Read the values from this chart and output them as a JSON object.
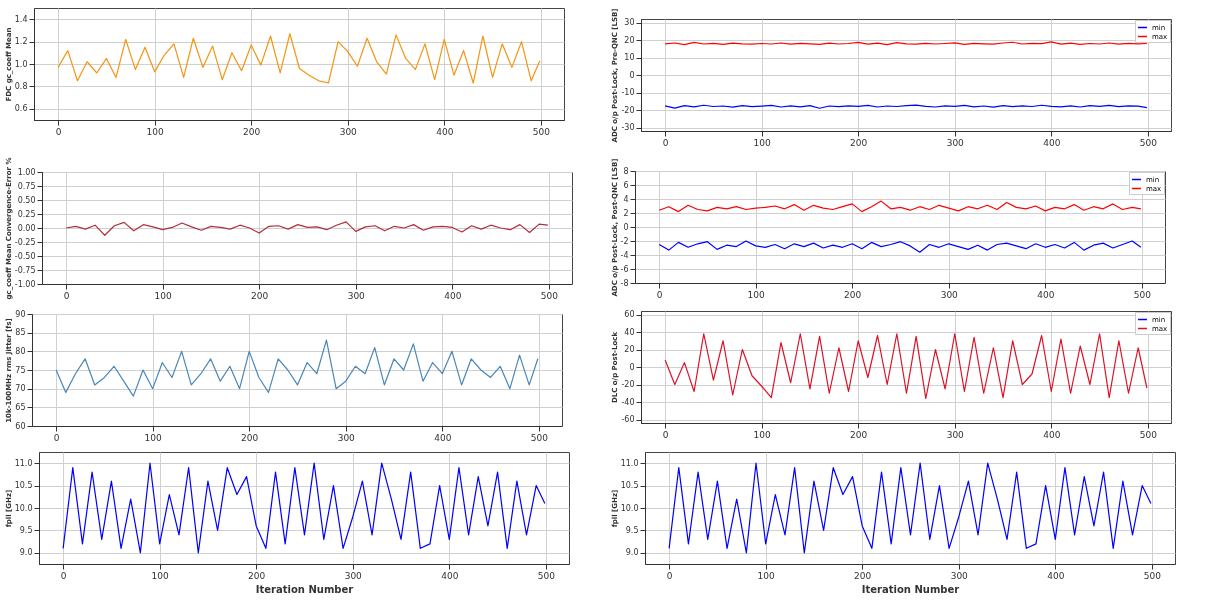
{
  "chart_data": [
    {
      "type": "line",
      "ylabel": "FDC gc_coeff Mean",
      "grid": true,
      "x": [
        0,
        10,
        20,
        30,
        40,
        50,
        60,
        70,
        80,
        90,
        100,
        110,
        120,
        130,
        140,
        150,
        160,
        170,
        180,
        190,
        200,
        210,
        220,
        230,
        240,
        250,
        260,
        270,
        280,
        290,
        300,
        310,
        320,
        330,
        340,
        350,
        360,
        370,
        380,
        390,
        400,
        410,
        420,
        430,
        440,
        450,
        460,
        470,
        480,
        490,
        499
      ],
      "xlim": [
        -25,
        524
      ],
      "xticks": [
        0,
        100,
        200,
        300,
        400,
        500
      ],
      "ylim": [
        0.5,
        1.5
      ],
      "yticks": [
        0.6,
        0.8,
        {
          "value": 1,
          "label": "1.0"
        },
        1.2,
        1.4
      ],
      "series": [
        {
          "color": "#f5940f",
          "values": [
            0.97,
            1.12,
            0.85,
            1.02,
            0.92,
            1.05,
            0.88,
            1.22,
            0.95,
            1.15,
            0.93,
            1.08,
            1.18,
            0.88,
            1.23,
            0.97,
            1.16,
            0.86,
            1.1,
            0.94,
            1.17,
            0.99,
            1.25,
            0.92,
            1.27,
            0.96,
            0.9,
            0.85,
            0.83,
            1.2,
            1.11,
            0.98,
            1.23,
            1.02,
            0.91,
            1.26,
            1.05,
            0.95,
            1.18,
            0.86,
            1.22,
            0.9,
            1.12,
            0.83,
            1.25,
            0.88,
            1.18,
            0.97,
            1.2,
            0.85,
            1.03
          ]
        }
      ]
    },
    {
      "type": "line",
      "ylabel": "ADC o/p Post-Lock, Pre-QNC [LSB]",
      "grid": true,
      "legend": "top right",
      "x": [
        0,
        10,
        20,
        30,
        40,
        50,
        60,
        70,
        80,
        90,
        100,
        110,
        120,
        130,
        140,
        150,
        160,
        170,
        180,
        190,
        200,
        210,
        220,
        230,
        240,
        250,
        260,
        270,
        280,
        290,
        300,
        310,
        320,
        330,
        340,
        350,
        360,
        370,
        380,
        390,
        400,
        410,
        420,
        430,
        440,
        450,
        460,
        470,
        480,
        490,
        499
      ],
      "xlim": [
        -25,
        524
      ],
      "xticks": [
        0,
        100,
        200,
        300,
        400,
        500
      ],
      "ylim": [
        -32,
        32
      ],
      "yticks": [
        -30,
        -20,
        -10,
        0,
        10,
        20,
        30
      ],
      "series": [
        {
          "name": "min",
          "color": "#0000ff",
          "values": [
            -17.6,
            -18.9,
            -17.5,
            -18.2,
            -17.3,
            -18.0,
            -17.7,
            -18.4,
            -17.5,
            -18.1,
            -17.8,
            -17.4,
            -18.3,
            -17.6,
            -18.2,
            -17.5,
            -19.0,
            -17.7,
            -18.1,
            -17.6,
            -17.9,
            -17.4,
            -18.3,
            -17.7,
            -18.0,
            -17.5,
            -17.2,
            -17.9,
            -18.3,
            -17.6,
            -17.9,
            -17.4,
            -18.2,
            -17.7,
            -18.4,
            -17.5,
            -18.1,
            -17.6,
            -18.0,
            -17.3,
            -17.9,
            -18.2,
            -17.6,
            -18.3,
            -17.5,
            -17.9,
            -17.4,
            -18.1,
            -17.6,
            -17.8,
            -18.6
          ]
        },
        {
          "name": "max",
          "color": "#ff0000",
          "values": [
            17.8,
            18.3,
            17.4,
            18.6,
            17.7,
            18.1,
            17.5,
            18.2,
            17.8,
            17.6,
            18.0,
            17.7,
            18.3,
            17.6,
            18.1,
            17.8,
            17.5,
            18.2,
            17.7,
            18.0,
            18.6,
            17.6,
            18.2,
            17.4,
            18.5,
            17.8,
            17.6,
            18.1,
            17.7,
            18.0,
            18.4,
            17.5,
            18.1,
            17.8,
            17.6,
            18.3,
            18.7,
            17.7,
            18.1,
            17.9,
            18.9,
            17.6,
            18.2,
            17.5,
            18.0,
            17.7,
            18.3,
            17.6,
            18.1,
            17.8,
            18.0
          ]
        }
      ]
    },
    {
      "type": "line",
      "ylabel": "gc_coeff Mean Convergence-Error %",
      "grid": true,
      "x": [
        0,
        10,
        20,
        30,
        40,
        50,
        60,
        70,
        80,
        90,
        100,
        110,
        120,
        130,
        140,
        150,
        160,
        170,
        180,
        190,
        200,
        210,
        220,
        230,
        240,
        250,
        260,
        270,
        280,
        290,
        300,
        310,
        320,
        330,
        340,
        350,
        360,
        370,
        380,
        390,
        400,
        410,
        420,
        430,
        440,
        450,
        460,
        470,
        480,
        490,
        499
      ],
      "xlim": [
        -25,
        524
      ],
      "xticks": [
        0,
        100,
        200,
        300,
        400,
        500
      ],
      "ylim": [
        -1,
        1
      ],
      "yticks": [
        {
          "value": -1,
          "label": "-1.00"
        },
        {
          "value": -0.75,
          "label": "-0.75"
        },
        {
          "value": -0.5,
          "label": "-0.50"
        },
        {
          "value": -0.25,
          "label": "-0.25"
        },
        {
          "value": 0,
          "label": "0.00"
        },
        {
          "value": 0.25,
          "label": "0.25"
        },
        {
          "value": 0.5,
          "label": "0.50"
        },
        {
          "value": 0.75,
          "label": "0.75"
        },
        {
          "value": 1,
          "label": "1.00"
        }
      ],
      "series": [
        {
          "color": "#b0303a",
          "values": [
            0.0,
            0.03,
            -0.02,
            0.05,
            -0.13,
            0.04,
            0.1,
            -0.05,
            0.06,
            0.02,
            -0.03,
            0.01,
            0.09,
            0.02,
            -0.04,
            0.03,
            0.01,
            -0.02,
            0.05,
            0.0,
            -0.09,
            0.03,
            0.04,
            -0.02,
            0.06,
            0.01,
            0.02,
            -0.03,
            0.05,
            0.11,
            -0.06,
            0.02,
            0.04,
            -0.05,
            0.03,
            0.0,
            0.06,
            -0.04,
            0.02,
            0.03,
            0.01,
            -0.07,
            0.04,
            -0.02,
            0.05,
            0.0,
            -0.03,
            0.06,
            -0.08,
            0.07,
            0.05
          ]
        }
      ]
    },
    {
      "type": "line",
      "ylabel": "ADC o/p Post-Lock, Post-QNC [LSB]",
      "grid": true,
      "legend": "top right",
      "x": [
        0,
        10,
        20,
        30,
        40,
        50,
        60,
        70,
        80,
        90,
        100,
        110,
        120,
        130,
        140,
        150,
        160,
        170,
        180,
        190,
        200,
        210,
        220,
        230,
        240,
        250,
        260,
        270,
        280,
        290,
        300,
        310,
        320,
        330,
        340,
        350,
        360,
        370,
        380,
        390,
        400,
        410,
        420,
        430,
        440,
        450,
        460,
        470,
        480,
        490,
        499
      ],
      "xlim": [
        -25,
        524
      ],
      "xticks": [
        0,
        100,
        200,
        300,
        400,
        500
      ],
      "ylim": [
        -8,
        8
      ],
      "yticks": [
        -8,
        -6,
        -4,
        -2,
        0,
        2,
        4,
        6,
        8
      ],
      "series": [
        {
          "name": "min",
          "color": "#0000ff",
          "values": [
            -2.5,
            -3.3,
            -2.2,
            -2.9,
            -2.4,
            -2.1,
            -3.2,
            -2.6,
            -2.8,
            -2.0,
            -2.7,
            -2.9,
            -2.5,
            -3.1,
            -2.4,
            -2.8,
            -2.3,
            -3.0,
            -2.6,
            -2.9,
            -2.4,
            -3.1,
            -2.2,
            -2.8,
            -2.5,
            -2.1,
            -2.7,
            -3.6,
            -2.5,
            -2.9,
            -2.4,
            -2.8,
            -3.2,
            -2.6,
            -3.3,
            -2.5,
            -2.3,
            -2.7,
            -3.1,
            -2.4,
            -2.9,
            -2.5,
            -3.0,
            -2.2,
            -3.3,
            -2.6,
            -2.3,
            -3.0,
            -2.5,
            -2.0,
            -2.9
          ]
        },
        {
          "name": "max",
          "color": "#ff0000",
          "values": [
            2.4,
            2.9,
            2.2,
            3.1,
            2.5,
            2.3,
            2.8,
            2.6,
            2.9,
            2.5,
            2.7,
            2.8,
            3.0,
            2.6,
            3.2,
            2.4,
            3.1,
            2.7,
            2.5,
            2.9,
            3.3,
            2.2,
            2.9,
            3.7,
            2.6,
            2.8,
            2.4,
            2.9,
            2.5,
            3.1,
            2.7,
            2.3,
            2.9,
            2.6,
            3.1,
            2.5,
            3.5,
            2.8,
            2.6,
            3.0,
            2.3,
            2.8,
            2.6,
            3.2,
            2.4,
            2.9,
            2.6,
            3.3,
            2.5,
            2.8,
            2.6
          ]
        }
      ]
    },
    {
      "type": "line",
      "ylabel": "10k-100MHz rms Jitter [fs]",
      "grid": true,
      "x": [
        0,
        10,
        20,
        30,
        40,
        50,
        60,
        70,
        80,
        90,
        100,
        110,
        120,
        130,
        140,
        150,
        160,
        170,
        180,
        190,
        200,
        210,
        220,
        230,
        240,
        250,
        260,
        270,
        280,
        290,
        300,
        310,
        320,
        330,
        340,
        350,
        360,
        370,
        380,
        390,
        400,
        410,
        420,
        430,
        440,
        450,
        460,
        470,
        480,
        490,
        499
      ],
      "xlim": [
        -25,
        524
      ],
      "xticks": [
        0,
        100,
        200,
        300,
        400,
        500
      ],
      "ylim": [
        60,
        90
      ],
      "yticks": [
        60,
        65,
        70,
        75,
        80,
        85,
        90
      ],
      "series": [
        {
          "color": "#4a86b8",
          "values": [
            75,
            69,
            74,
            78,
            71,
            73,
            76,
            72,
            68,
            75,
            70,
            77,
            73,
            80,
            71,
            74,
            78,
            72,
            76,
            70,
            80,
            73,
            69,
            78,
            75,
            71,
            77,
            74,
            83,
            70,
            72,
            76,
            74,
            81,
            71,
            78,
            75,
            82,
            72,
            77,
            74,
            80,
            71,
            78,
            75,
            73,
            76,
            70,
            79,
            71,
            78
          ]
        }
      ]
    },
    {
      "type": "line",
      "ylabel": "DLC o/p Post-Lock",
      "grid": true,
      "legend": "top right",
      "x": [
        0,
        10,
        20,
        30,
        40,
        50,
        60,
        70,
        80,
        90,
        100,
        110,
        120,
        130,
        140,
        150,
        160,
        170,
        180,
        190,
        200,
        210,
        220,
        230,
        240,
        250,
        260,
        270,
        280,
        290,
        300,
        310,
        320,
        330,
        340,
        350,
        360,
        370,
        380,
        390,
        400,
        410,
        420,
        430,
        440,
        450,
        460,
        470,
        480,
        490,
        499
      ],
      "xlim": [
        -25,
        524
      ],
      "xticks": [
        0,
        100,
        200,
        300,
        400,
        500
      ],
      "ylim": [
        -64,
        64
      ],
      "yticks": [
        -60,
        -40,
        -20,
        0,
        20,
        40,
        60
      ],
      "series": [
        {
          "name": "min",
          "color": "#0000ff",
          "values": [
            null,
            null,
            null,
            null,
            null,
            null,
            null,
            null,
            null,
            null,
            null,
            null,
            null,
            null,
            null,
            null,
            null,
            null,
            null,
            null,
            null,
            null,
            null,
            null,
            null,
            null,
            null,
            null,
            null,
            null,
            null,
            null,
            null,
            null,
            null,
            null,
            null,
            null,
            null,
            null,
            null,
            null,
            null,
            null,
            null,
            null,
            null,
            null,
            null,
            null,
            null
          ]
        },
        {
          "name": "max",
          "color": "#dd1126",
          "values": [
            8,
            -20,
            5,
            -28,
            38,
            -15,
            30,
            -32,
            20,
            -10,
            -22,
            -35,
            28,
            -18,
            38,
            -25,
            35,
            -30,
            22,
            -28,
            30,
            -12,
            36,
            -20,
            38,
            -30,
            35,
            -36,
            20,
            -25,
            38,
            -28,
            34,
            -30,
            22,
            -35,
            30,
            -20,
            -8,
            36,
            -28,
            32,
            -30,
            24,
            -20,
            38,
            -35,
            30,
            -30,
            22,
            -24
          ]
        }
      ]
    },
    {
      "type": "line",
      "ylabel": "fpll [GHz]",
      "xlabel": "Iteration Number",
      "grid": true,
      "x": [
        0,
        10,
        20,
        30,
        40,
        50,
        60,
        70,
        80,
        90,
        100,
        110,
        120,
        130,
        140,
        150,
        160,
        170,
        180,
        190,
        200,
        210,
        220,
        230,
        240,
        250,
        260,
        270,
        280,
        290,
        300,
        310,
        320,
        330,
        340,
        350,
        360,
        370,
        380,
        390,
        400,
        410,
        420,
        430,
        440,
        450,
        460,
        470,
        480,
        490,
        499
      ],
      "xlim": [
        -25,
        524
      ],
      "xticks": [
        0,
        100,
        200,
        300,
        400,
        500
      ],
      "ylim": [
        8.75,
        11.25
      ],
      "yticks": [
        {
          "value": 9,
          "label": "9.0"
        },
        9.5,
        {
          "value": 10,
          "label": "10.0"
        },
        10.5,
        {
          "value": 11,
          "label": "11.0"
        }
      ],
      "series": [
        {
          "color": "#0000ff",
          "values": [
            9.1,
            10.9,
            9.2,
            10.8,
            9.3,
            10.6,
            9.1,
            10.2,
            9.0,
            11.0,
            9.2,
            10.3,
            9.4,
            10.9,
            9.0,
            10.6,
            9.5,
            10.9,
            10.3,
            10.7,
            9.6,
            9.1,
            10.8,
            9.2,
            10.9,
            9.4,
            11.0,
            9.3,
            10.5,
            9.1,
            9.8,
            10.6,
            9.4,
            11.0,
            10.2,
            9.3,
            10.8,
            9.1,
            9.2,
            10.5,
            9.3,
            10.9,
            9.4,
            10.7,
            9.6,
            10.8,
            9.1,
            10.6,
            9.4,
            10.5,
            10.1
          ]
        }
      ]
    },
    {
      "type": "line",
      "ylabel": "fpll [GHz]",
      "xlabel": "Iteration Number",
      "grid": true,
      "x": [
        0,
        10,
        20,
        30,
        40,
        50,
        60,
        70,
        80,
        90,
        100,
        110,
        120,
        130,
        140,
        150,
        160,
        170,
        180,
        190,
        200,
        210,
        220,
        230,
        240,
        250,
        260,
        270,
        280,
        290,
        300,
        310,
        320,
        330,
        340,
        350,
        360,
        370,
        380,
        390,
        400,
        410,
        420,
        430,
        440,
        450,
        460,
        470,
        480,
        490,
        499
      ],
      "xlim": [
        -25,
        524
      ],
      "xticks": [
        0,
        100,
        200,
        300,
        400,
        500
      ],
      "ylim": [
        8.75,
        11.25
      ],
      "yticks": [
        {
          "value": 9,
          "label": "9.0"
        },
        9.5,
        {
          "value": 10,
          "label": "10.0"
        },
        10.5,
        {
          "value": 11,
          "label": "11.0"
        }
      ],
      "series": [
        {
          "color": "#0000ff",
          "values": [
            9.1,
            10.9,
            9.2,
            10.8,
            9.3,
            10.6,
            9.1,
            10.2,
            9.0,
            11.0,
            9.2,
            10.3,
            9.4,
            10.9,
            9.0,
            10.6,
            9.5,
            10.9,
            10.3,
            10.7,
            9.6,
            9.1,
            10.8,
            9.2,
            10.9,
            9.4,
            11.0,
            9.3,
            10.5,
            9.1,
            9.8,
            10.6,
            9.4,
            11.0,
            10.2,
            9.3,
            10.8,
            9.1,
            9.2,
            10.5,
            9.3,
            10.9,
            9.4,
            10.7,
            9.6,
            10.8,
            9.1,
            10.6,
            9.4,
            10.5,
            10.1
          ]
        }
      ]
    }
  ]
}
